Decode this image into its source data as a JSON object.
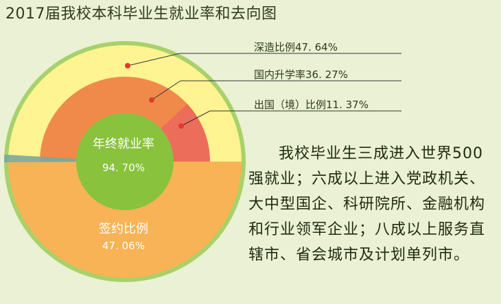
{
  "title": "2017届我校本科毕业生就业率和去向图",
  "colors": {
    "outer_ring": "#a8d16a",
    "upper_fill": "#fff392",
    "domestic": "#f08a4b",
    "abroad": "#ec6d5a",
    "signed": "#f7b356",
    "center": "#89c23d",
    "gap": "#7aa79a"
  },
  "chart_data": {
    "type": "pie",
    "center": {
      "label": "年终就业率",
      "value": 94.7,
      "value_text": "94. 70%"
    },
    "slices": [
      {
        "label": "签约比例",
        "value": 47.06,
        "value_text": "47. 06%"
      },
      {
        "label": "深造比例",
        "value": 47.64,
        "text": "深造比例47. 64%"
      },
      {
        "label": "国内升学率",
        "value": 36.27,
        "text": "国内升学率36. 27%"
      },
      {
        "label": "出国（境）比例",
        "value": 11.37,
        "text": "出国（境）比例11. 37%"
      }
    ],
    "unemployed_gap": 5.3
  },
  "description": "我校毕业生三成进入世界500强就业；六成以上进入党政机关、大中型国企、科研院所、金融机构和行业领军企业；八成以上服务直辖市、省会城市及计划单列市。"
}
